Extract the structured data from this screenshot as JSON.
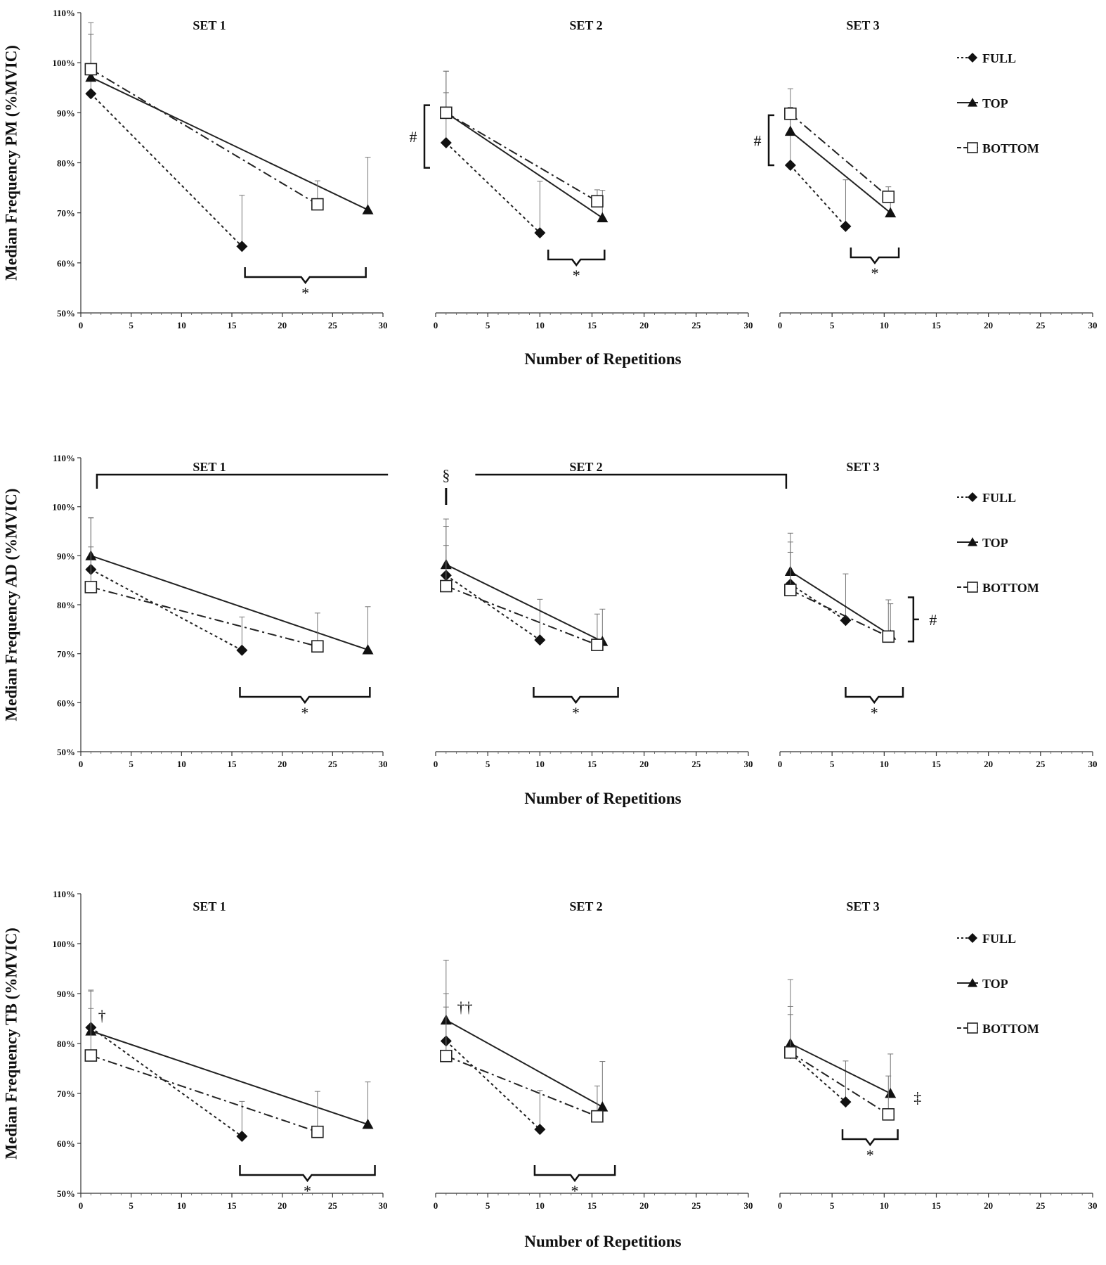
{
  "figure": {
    "x_axis_label": "Number of Repetitions",
    "legend": [
      {
        "key": "full",
        "label": "FULL"
      },
      {
        "key": "top",
        "label": "TOP"
      },
      {
        "key": "bottom",
        "label": "BOTTOM"
      }
    ]
  },
  "chart_data": [
    {
      "type": "line",
      "id": "pm",
      "ylabel": "Median Frequency PM (%MVIC)",
      "xlabel": "Number of Repetitions",
      "ylim": [
        50,
        110
      ],
      "yticks": [
        50,
        60,
        70,
        80,
        90,
        100,
        110
      ],
      "ytick_labels": [
        "50%",
        "60%",
        "70%",
        "80%",
        "90%",
        "100%",
        "110%"
      ],
      "xlim": [
        0,
        30
      ],
      "xticks": [
        0,
        5,
        10,
        15,
        20,
        25,
        30
      ],
      "xtick_labels": [
        "0",
        "5",
        "10",
        "15",
        "20",
        "25",
        "30"
      ],
      "panels": [
        {
          "title": "SET 1",
          "series": [
            {
              "name": "FULL",
              "x": [
                1,
                16
              ],
              "y": [
                93.8,
                63.3
              ],
              "err": [
                14.2,
                10.2
              ]
            },
            {
              "name": "TOP",
              "x": [
                1,
                28.5
              ],
              "y": [
                97.1,
                70.6
              ],
              "err": [
                8.6,
                10.5
              ]
            },
            {
              "name": "BOTTOM",
              "x": [
                1,
                23.5
              ],
              "y": [
                98.7,
                71.7
              ],
              "err": [
                7,
                4.7
              ]
            }
          ],
          "annotations": [
            {
              "text": "*",
              "from": 16.3,
              "to": 28.3
            }
          ]
        },
        {
          "title": "SET 2",
          "series": [
            {
              "name": "FULL",
              "x": [
                1,
                10
              ],
              "y": [
                84,
                66
              ],
              "err": [
                10,
                10.3
              ]
            },
            {
              "name": "TOP",
              "x": [
                1,
                16
              ],
              "y": [
                90,
                69
              ],
              "err": [
                8.3,
                5.5
              ]
            },
            {
              "name": "BOTTOM",
              "x": [
                1,
                15.5
              ],
              "y": [
                90,
                72.3
              ],
              "err": [
                8.3,
                2.3
              ]
            }
          ],
          "annotations": [
            {
              "text": "*",
              "from": 10.8,
              "to": 16.2
            }
          ],
          "marks": [
            {
              "text": "#",
              "y_from": 79,
              "y_to": 91.5
            }
          ]
        },
        {
          "title": "SET 3",
          "series": [
            {
              "name": "FULL",
              "x": [
                1,
                6.3
              ],
              "y": [
                79.5,
                67.3
              ],
              "err": [
                10.5,
                9.3
              ]
            },
            {
              "name": "TOP",
              "x": [
                1,
                10.6
              ],
              "y": [
                86.3,
                70
              ],
              "err": [
                4.8,
                2.7
              ]
            },
            {
              "name": "BOTTOM",
              "x": [
                1,
                10.4
              ],
              "y": [
                89.8,
                73.2
              ],
              "err": [
                5,
                2
              ]
            }
          ],
          "annotations": [
            {
              "text": "*",
              "from": 6.8,
              "to": 11.4
            }
          ],
          "marks": [
            {
              "text": "#",
              "y_from": 79.5,
              "y_to": 89.5
            }
          ]
        }
      ]
    },
    {
      "type": "line",
      "id": "ad",
      "ylabel": "Median Frequency AD (%MVIC)",
      "xlabel": "Number of Repetitions",
      "ylim": [
        50,
        110
      ],
      "yticks": [
        50,
        60,
        70,
        80,
        90,
        100,
        110
      ],
      "ytick_labels": [
        "50%",
        "60%",
        "70%",
        "80%",
        "90%",
        "100%",
        "110%"
      ],
      "xlim": [
        0,
        30
      ],
      "xticks": [
        0,
        5,
        10,
        15,
        20,
        25,
        30
      ],
      "xtick_labels": [
        "0",
        "5",
        "10",
        "15",
        "20",
        "25",
        "30"
      ],
      "panels": [
        {
          "title": "SET 1",
          "series": [
            {
              "name": "FULL",
              "x": [
                1,
                16
              ],
              "y": [
                87.2,
                70.7
              ],
              "err": [
                10.5,
                6.8
              ]
            },
            {
              "name": "TOP",
              "x": [
                1,
                28.5
              ],
              "y": [
                90,
                70.8
              ],
              "err": [
                7.8,
                8.8
              ]
            },
            {
              "name": "BOTTOM",
              "x": [
                1,
                23.5
              ],
              "y": [
                83.6,
                71.5
              ],
              "err": [
                8.2,
                6.8
              ]
            }
          ],
          "annotations": [
            {
              "text": "*",
              "from": 15.8,
              "to": 28.7
            }
          ]
        },
        {
          "title": "SET 2",
          "series": [
            {
              "name": "FULL",
              "x": [
                1,
                10
              ],
              "y": [
                86,
                72.8
              ],
              "err": [
                10,
                8.3
              ]
            },
            {
              "name": "TOP",
              "x": [
                1,
                16
              ],
              "y": [
                88.2,
                72.5
              ],
              "err": [
                9.3,
                6.6
              ]
            },
            {
              "name": "BOTTOM",
              "x": [
                1,
                15.5
              ],
              "y": [
                83.8,
                71.8
              ],
              "err": [
                8.3,
                6.3
              ]
            }
          ],
          "annotations": [
            {
              "text": "*",
              "from": 9.4,
              "to": 17.5
            }
          ],
          "marks": [
            {
              "text": "§"
            }
          ]
        },
        {
          "title": "SET 3",
          "series": [
            {
              "name": "FULL",
              "x": [
                1,
                6.3
              ],
              "y": [
                84.2,
                76.8
              ],
              "err": [
                8.6,
                9.5
              ]
            },
            {
              "name": "TOP",
              "x": [
                1,
                10.6
              ],
              "y": [
                86.8,
                73.8
              ],
              "err": [
                7.8,
                6.4
              ]
            },
            {
              "name": "BOTTOM",
              "x": [
                1,
                10.4
              ],
              "y": [
                83,
                73.5
              ],
              "err": [
                7.7,
                7.5
              ]
            }
          ],
          "annotations": [
            {
              "text": "*",
              "from": 6.3,
              "to": 11.8
            }
          ],
          "marks": [
            {
              "text": "#",
              "y_from": 72.5,
              "y_to": 81.5
            }
          ]
        }
      ],
      "span_bracket": {
        "from_panel": 0,
        "from_x": 1.6,
        "to_panel": 2,
        "to_x": 0.6
      }
    },
    {
      "type": "line",
      "id": "tb",
      "ylabel": "Median Frequency TB (%MVIC)",
      "xlabel": "Number of Repetitions",
      "ylim": [
        50,
        110
      ],
      "yticks": [
        50,
        60,
        70,
        80,
        90,
        100,
        110
      ],
      "ytick_labels": [
        "50%",
        "60%",
        "70%",
        "80%",
        "90%",
        "100%",
        "110%"
      ],
      "xlim": [
        0,
        30
      ],
      "xticks": [
        0,
        5,
        10,
        15,
        20,
        25,
        30
      ],
      "xtick_labels": [
        "0",
        "5",
        "10",
        "15",
        "20",
        "25",
        "30"
      ],
      "panels": [
        {
          "title": "SET 1",
          "series": [
            {
              "name": "FULL",
              "x": [
                1,
                16
              ],
              "y": [
                83.2,
                61.4
              ],
              "err": [
                7.5,
                7
              ]
            },
            {
              "name": "TOP",
              "x": [
                1,
                28.5
              ],
              "y": [
                82.5,
                63.8
              ],
              "err": [
                8,
                8.5
              ]
            },
            {
              "name": "BOTTOM",
              "x": [
                1,
                23.5
              ],
              "y": [
                77.6,
                62.3
              ],
              "err": [
                9.4,
                8.1
              ]
            }
          ],
          "annotations": [
            {
              "text": "*",
              "from": 15.8,
              "to": 29.2
            }
          ],
          "marks": [
            {
              "text": "†",
              "x": 2.1,
              "y": 85.6
            }
          ]
        },
        {
          "title": "SET 2",
          "series": [
            {
              "name": "FULL",
              "x": [
                1,
                10
              ],
              "y": [
                80.5,
                62.8
              ],
              "err": [
                9.5,
                7.8
              ]
            },
            {
              "name": "TOP",
              "x": [
                1,
                16
              ],
              "y": [
                84.7,
                67.3
              ],
              "err": [
                12,
                9.1
              ]
            },
            {
              "name": "BOTTOM",
              "x": [
                1,
                15.5
              ],
              "y": [
                77.5,
                65.4
              ],
              "err": [
                9.8,
                6.1
              ]
            }
          ],
          "annotations": [
            {
              "text": "*",
              "from": 9.5,
              "to": 17.2
            }
          ],
          "marks": [
            {
              "text": "††",
              "x": 2.8,
              "y": 87.3
            }
          ]
        },
        {
          "title": "SET 3",
          "series": [
            {
              "name": "FULL",
              "x": [
                1,
                6.3
              ],
              "y": [
                78,
                68.3
              ],
              "err": [
                7.8,
                8.2
              ]
            },
            {
              "name": "TOP",
              "x": [
                1,
                10.6
              ],
              "y": [
                80,
                70
              ],
              "err": [
                12.8,
                7.9
              ]
            },
            {
              "name": "BOTTOM",
              "x": [
                1,
                10.4
              ],
              "y": [
                78.2,
                65.8
              ],
              "err": [
                9.2,
                7.7
              ]
            }
          ],
          "annotations": [
            {
              "text": "*",
              "from": 6,
              "to": 11.3
            }
          ],
          "marks": [
            {
              "text": "‡",
              "x": 13.2,
              "y": 69.2
            }
          ]
        }
      ]
    }
  ]
}
